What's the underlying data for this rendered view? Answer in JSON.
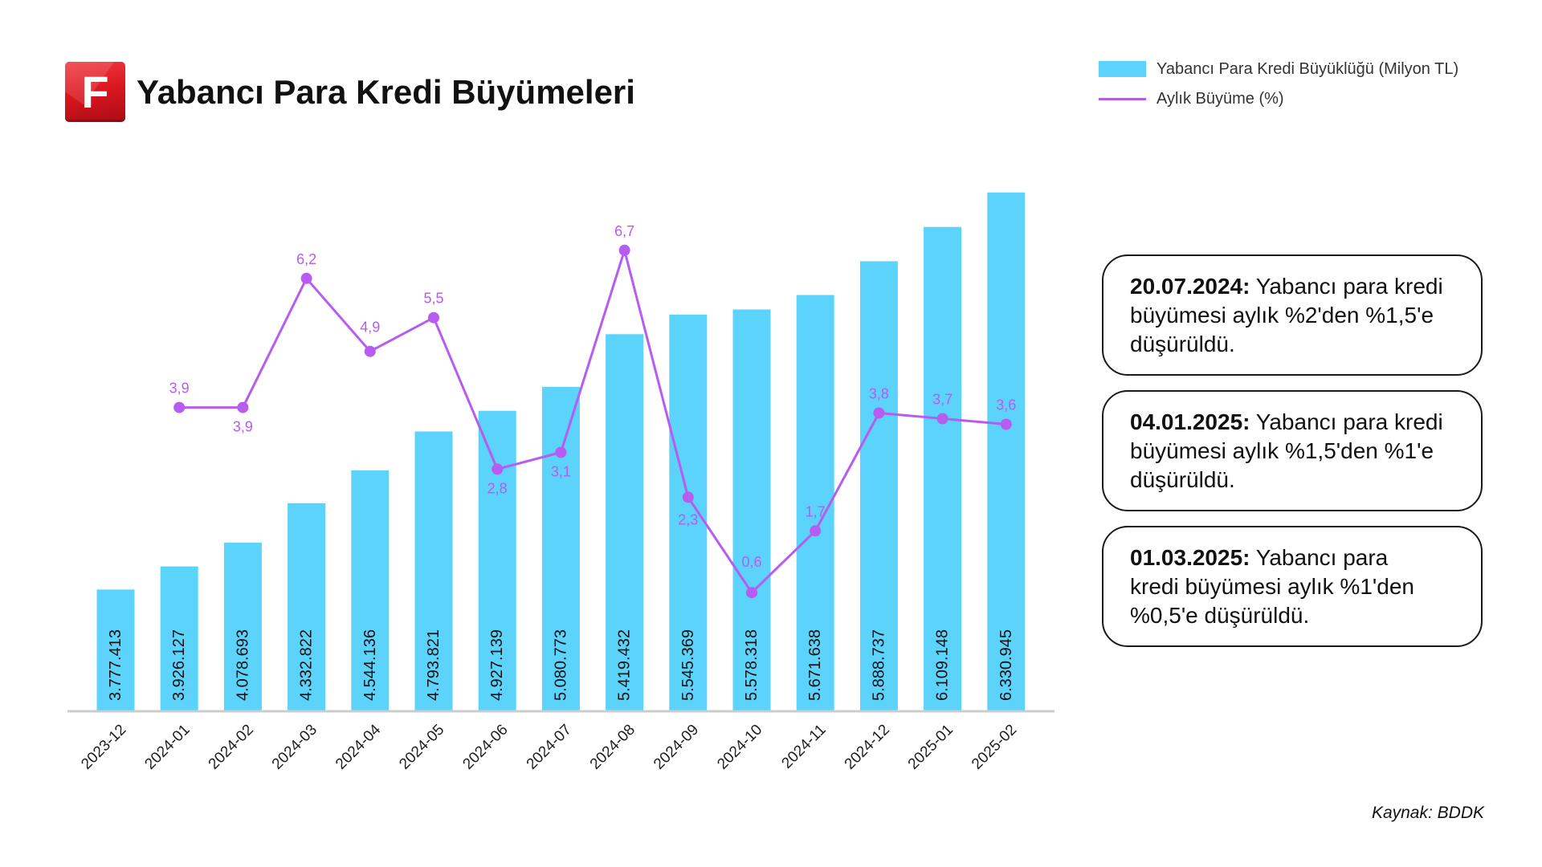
{
  "header": {
    "logo_letter": "F"
  },
  "chart_data": {
    "type": "bar",
    "title": "Yabancı Para Kredi Büyümeleri",
    "categories": [
      "2023-12",
      "2024-01",
      "2024-02",
      "2024-03",
      "2024-04",
      "2024-05",
      "2024-06",
      "2024-07",
      "2024-08",
      "2024-09",
      "2024-10",
      "2024-11",
      "2024-12",
      "2025-01",
      "2025-02"
    ],
    "series": [
      {
        "name": "Yabancı Para Kredi Büyüklüğü (Milyon TL)",
        "type": "bar",
        "axis": "left",
        "values": [
          3777413,
          3926127,
          4078693,
          4332822,
          4544136,
          4793821,
          4927139,
          5080773,
          5419432,
          5545369,
          5578318,
          5671638,
          5888737,
          6109148,
          6330945
        ],
        "data_labels": [
          "3.777.413",
          "3.926.127",
          "4.078.693",
          "4.332.822",
          "4.544.136",
          "4.793.821",
          "4.927.139",
          "5.080.773",
          "5.419.432",
          "5.545.369",
          "5.578.318",
          "5.671.638",
          "5.888.737",
          "6.109.148",
          "6.330.945"
        ]
      },
      {
        "name": "Aylık Büyüme (%)",
        "type": "line",
        "axis": "right",
        "values": [
          null,
          3.9,
          3.9,
          6.2,
          4.9,
          5.5,
          2.8,
          3.1,
          6.7,
          2.3,
          0.6,
          1.7,
          3.8,
          3.7,
          3.6
        ],
        "data_labels": [
          null,
          "3,9",
          "3,9",
          "6,2",
          "4,9",
          "5,5",
          "2,8",
          "3,1",
          "6,7",
          "2,3",
          "0,6",
          "1,7",
          "3,8",
          "3,7",
          "3,6"
        ]
      }
    ],
    "ylim": [
      3000000,
      6500000
    ],
    "y2lim": [
      -1.5,
      8.2
    ],
    "grid": false,
    "legend_position": "top-right"
  },
  "annotations": [
    {
      "date": "20.07.2024:",
      "lines": [
        "Yabancı para kredi",
        "büyümesi aylık %2'den %1,5'e",
        "düşürüldü."
      ]
    },
    {
      "date": "04.01.2025:",
      "lines": [
        "Yabancı para kredi",
        "büyümesi aylık %1,5'den %1'e",
        "düşürüldü."
      ]
    },
    {
      "date": "01.03.2025:",
      "lines": [
        "Yabancı para",
        "kredi büyümesi aylık %1'den",
        "%0,5'e düşürüldü."
      ]
    }
  ],
  "source": "Kaynak: BDDK",
  "colors": {
    "brand": "#d9161f",
    "bar": "#5bd3fa",
    "line": "#b75cf1",
    "axis": "#cccccc",
    "text": "#111111"
  }
}
